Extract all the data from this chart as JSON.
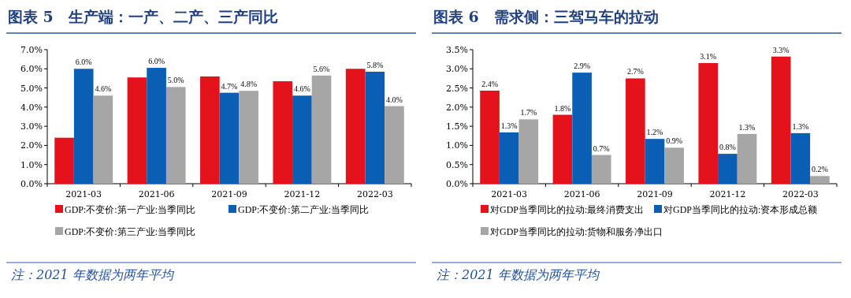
{
  "chart_data": [
    {
      "type": "bar",
      "title": "图表 5　生产端：一产、二产、三产同比",
      "categories": [
        "2021-03",
        "2021-06",
        "2021-09",
        "2021-12",
        "2022-03"
      ],
      "ylim": [
        0,
        7
      ],
      "yticks": [
        {
          "value": 0,
          "label": "0.0%"
        },
        {
          "value": 1,
          "label": "1.0%"
        },
        {
          "value": 2,
          "label": "2.0%"
        },
        {
          "value": 3,
          "label": "3.0%"
        },
        {
          "value": 4,
          "label": "4.0%"
        },
        {
          "value": 5,
          "label": "5.0%"
        },
        {
          "value": 6,
          "label": "6.0%"
        },
        {
          "value": 7,
          "label": "7.0%"
        }
      ],
      "legend": "bottom",
      "grid": false,
      "series": [
        {
          "name": "GDP:不变价:第一产业:当季同比",
          "color": "#e3121b",
          "values": [
            2.4,
            5.55,
            5.6,
            5.35,
            6.0
          ],
          "value_labels": [
            null,
            null,
            null,
            null,
            null
          ]
        },
        {
          "name": "GDP:不变价:第二产业:当季同比",
          "color": "#0a5fb4",
          "values": [
            6.0,
            6.05,
            4.75,
            4.6,
            5.85
          ],
          "value_labels": [
            "6.0%",
            "6.0%",
            "4.7%",
            "4.6%",
            "5.8%"
          ]
        },
        {
          "name": "GDP:不变价:第三产业:当季同比",
          "color": "#a6a6a6",
          "values": [
            4.6,
            5.05,
            4.85,
            5.65,
            4.05
          ],
          "value_labels": [
            "4.6%",
            "5.0%",
            "4.8%",
            "5.6%",
            "4.0%"
          ]
        }
      ],
      "annotations": [
        "注：2021 年数据为两年平均"
      ]
    },
    {
      "type": "bar",
      "title": "图表 6　需求侧：三驾马车的拉动",
      "categories": [
        "2021-03",
        "2021-06",
        "2021-09",
        "2021-12",
        "2022-03"
      ],
      "ylim": [
        0,
        3.5
      ],
      "yticks": [
        {
          "value": 0,
          "label": "0.0%"
        },
        {
          "value": 0.5,
          "label": "0.5%"
        },
        {
          "value": 1,
          "label": "1.0%"
        },
        {
          "value": 1.5,
          "label": "1.5%"
        },
        {
          "value": 2,
          "label": "2.0%"
        },
        {
          "value": 2.5,
          "label": "2.5%"
        },
        {
          "value": 3,
          "label": "3.0%"
        },
        {
          "value": 3.5,
          "label": "3.5%"
        }
      ],
      "legend": "bottom",
      "grid": false,
      "series": [
        {
          "name": "对GDP当季同比的拉动:最终消费支出",
          "color": "#e3121b",
          "values": [
            2.43,
            1.8,
            2.75,
            3.15,
            3.32
          ],
          "value_labels": [
            "2.4%",
            "1.8%",
            "2.7%",
            "3.1%",
            "3.3%"
          ]
        },
        {
          "name": "对GDP当季同比的拉动:资本形成总额",
          "color": "#0a5fb4",
          "values": [
            1.34,
            2.9,
            1.17,
            0.78,
            1.32
          ],
          "value_labels": [
            "1.3%",
            "2.9%",
            "1.2%",
            "0.8%",
            "1.3%"
          ]
        },
        {
          "name": "对GDP当季同比的拉动:货物和服务净出口",
          "color": "#a6a6a6",
          "values": [
            1.68,
            0.75,
            0.94,
            1.3,
            0.2
          ],
          "value_labels": [
            "1.7%",
            "0.7%",
            "0.9%",
            "1.3%",
            "0.2%"
          ]
        }
      ],
      "annotations": [
        "注：2021 年数据为两年平均"
      ]
    }
  ]
}
